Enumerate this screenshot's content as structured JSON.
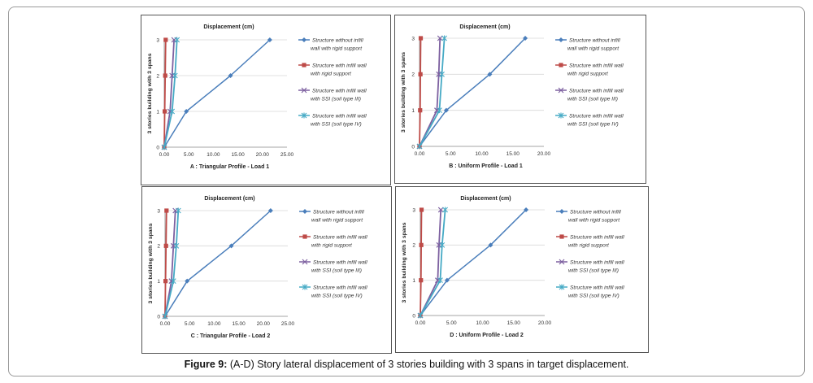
{
  "caption": {
    "label": "Figure 9:",
    "text": "(A-D) Story lateral displacement of 3 stories building with 3 spans in target displacement."
  },
  "colors": {
    "series_without_infill": "#4a7ebb",
    "series_infill_rigid": "#be4b48",
    "series_ssi_iii": "#7d60a0",
    "series_ssi_iv": "#46aac5",
    "gridline": "#d9d9d9"
  },
  "chart_data": [
    {
      "type": "line",
      "title": "Displacement (cm)",
      "xlabel": "A : Triangular Profile - Load 1",
      "ylabel": "3 stories building with 3 spans",
      "xlim": [
        0,
        25
      ],
      "xticks": [
        "0.00",
        "5.00",
        "10.00",
        "15.00",
        "20.00",
        "25.00"
      ],
      "ylim": [
        0,
        3
      ],
      "yticks": [
        "0",
        "1",
        "2",
        "3"
      ],
      "grid": "horizontal",
      "legend": "right",
      "series": [
        {
          "name": "Structure without infill wall with rigid support",
          "x": [
            0,
            4.5,
            13.5,
            21.5
          ],
          "y": [
            0,
            1,
            2,
            3
          ]
        },
        {
          "name": "Structure with infill wall with rigid support",
          "x": [
            0,
            0.1,
            0.2,
            0.3
          ],
          "y": [
            0,
            1,
            2,
            3
          ]
        },
        {
          "name": "Structure with infill wall with SSI (soil type III)",
          "x": [
            0,
            1.2,
            1.6,
            2.0
          ],
          "y": [
            0,
            1,
            2,
            3
          ]
        },
        {
          "name": "Structure with infill wall with SSI (soil type IV)",
          "x": [
            0,
            1.6,
            2.2,
            2.6
          ],
          "y": [
            0,
            1,
            2,
            3
          ]
        }
      ]
    },
    {
      "type": "line",
      "title": "Displacement (cm)",
      "xlabel": "B : Uniform Profile - Load 1",
      "ylabel": "3 stories building with 3 spans",
      "xlim": [
        0,
        20
      ],
      "xticks": [
        "0.00",
        "5.00",
        "10.00",
        "15.00",
        "20.00"
      ],
      "ylim": [
        0,
        3
      ],
      "yticks": [
        "0",
        "1",
        "2",
        "3"
      ],
      "grid": "horizontal",
      "legend": "right",
      "series": [
        {
          "name": "Structure without infill wall with rigid support",
          "x": [
            0,
            4.3,
            11.3,
            17.0
          ],
          "y": [
            0,
            1,
            2,
            3
          ]
        },
        {
          "name": "Structure with infill wall with rigid support",
          "x": [
            0,
            0.1,
            0.15,
            0.2
          ],
          "y": [
            0,
            1,
            2,
            3
          ]
        },
        {
          "name": "Structure with infill wall with SSI (soil type III)",
          "x": [
            0,
            2.8,
            3.1,
            3.3
          ],
          "y": [
            0,
            1,
            2,
            3
          ]
        },
        {
          "name": "Structure with infill wall with SSI (soil type IV)",
          "x": [
            0,
            3.2,
            3.6,
            4.0
          ],
          "y": [
            0,
            1,
            2,
            3
          ]
        }
      ]
    },
    {
      "type": "line",
      "title": "Displacement (cm)",
      "xlabel": "C : Triangular Profile - Load 2",
      "ylabel": "3 stories building with 3 spans",
      "xlim": [
        0,
        25
      ],
      "xticks": [
        "0.00",
        "5.00",
        "10.00",
        "15.00",
        "20.00",
        "25.00"
      ],
      "ylim": [
        0,
        3
      ],
      "yticks": [
        "0",
        "1",
        "2",
        "3"
      ],
      "grid": "horizontal",
      "legend": "right",
      "series": [
        {
          "name": "Structure without infill wall with rigid support",
          "x": [
            0,
            4.5,
            13.5,
            21.5
          ],
          "y": [
            0,
            1,
            2,
            3
          ]
        },
        {
          "name": "Structure with infill wall with rigid support",
          "x": [
            0,
            0.1,
            0.2,
            0.3
          ],
          "y": [
            0,
            1,
            2,
            3
          ]
        },
        {
          "name": "Structure with infill wall with SSI (soil type III)",
          "x": [
            0,
            1.3,
            1.7,
            2.1
          ],
          "y": [
            0,
            1,
            2,
            3
          ]
        },
        {
          "name": "Structure with infill wall with SSI (soil type IV)",
          "x": [
            0,
            1.7,
            2.3,
            2.7
          ],
          "y": [
            0,
            1,
            2,
            3
          ]
        }
      ]
    },
    {
      "type": "line",
      "title": "Displacement (cm)",
      "xlabel": "D : Uniform Profile - Load 2",
      "ylabel": "3 stories building with 3 spans",
      "xlim": [
        0,
        20
      ],
      "xticks": [
        "0.00",
        "5.00",
        "10.00",
        "15.00",
        "20.00"
      ],
      "ylim": [
        0,
        3
      ],
      "yticks": [
        "0",
        "1",
        "2",
        "3"
      ],
      "grid": "horizontal",
      "legend": "right",
      "series": [
        {
          "name": "Structure without infill wall with rigid support",
          "x": [
            0,
            4.3,
            11.3,
            17.0
          ],
          "y": [
            0,
            1,
            2,
            3
          ]
        },
        {
          "name": "Structure with infill wall with rigid support",
          "x": [
            0,
            0.1,
            0.15,
            0.2
          ],
          "y": [
            0,
            1,
            2,
            3
          ]
        },
        {
          "name": "Structure with infill wall with SSI (soil type III)",
          "x": [
            0,
            2.8,
            3.0,
            3.3
          ],
          "y": [
            0,
            1,
            2,
            3
          ]
        },
        {
          "name": "Structure with infill wall with SSI (soil type IV)",
          "x": [
            0,
            3.2,
            3.5,
            4.0
          ],
          "y": [
            0,
            1,
            2,
            3
          ]
        }
      ]
    }
  ]
}
